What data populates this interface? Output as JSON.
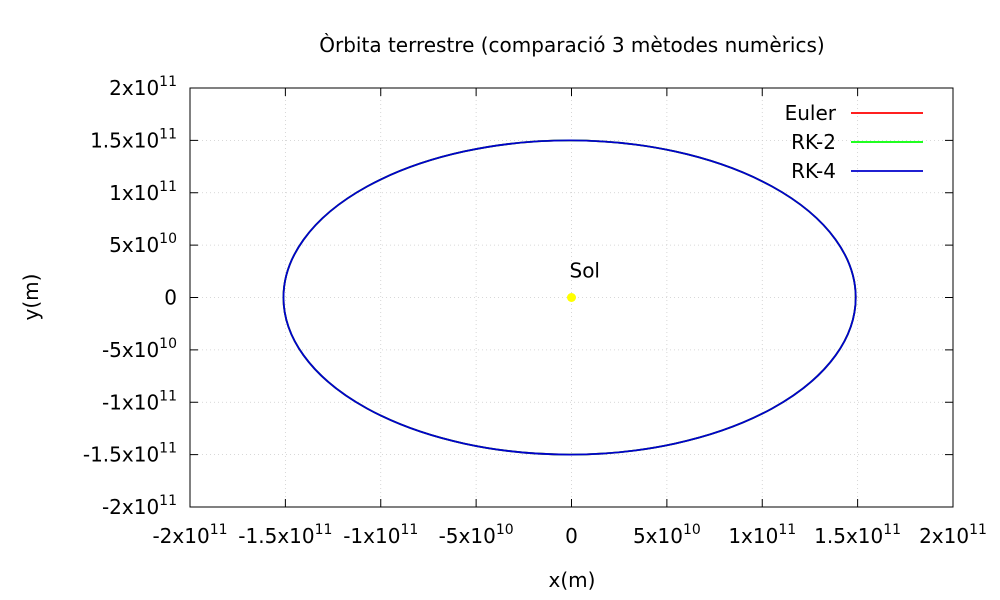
{
  "chart_data": {
    "type": "line",
    "title": "Òrbita terrestre (comparació 3 mètodes numèrics)",
    "xlabel": "x(m)",
    "ylabel": "y(m)",
    "xlim": [
      -200000000000.0,
      200000000000.0
    ],
    "ylim": [
      -200000000000.0,
      200000000000.0
    ],
    "grid": true,
    "legend_position": "top-right",
    "x_ticks": [
      {
        "value": -200000000000.0,
        "mantissa": "-2x10",
        "exp": "11"
      },
      {
        "value": -150000000000.0,
        "mantissa": "-1.5x10",
        "exp": "11"
      },
      {
        "value": -100000000000.0,
        "mantissa": "-1x10",
        "exp": "11"
      },
      {
        "value": -50000000000.0,
        "mantissa": "-5x10",
        "exp": "10"
      },
      {
        "value": 0,
        "mantissa": "0",
        "exp": ""
      },
      {
        "value": 50000000000.0,
        "mantissa": "5x10",
        "exp": "10"
      },
      {
        "value": 100000000000.0,
        "mantissa": "1x10",
        "exp": "11"
      },
      {
        "value": 150000000000.0,
        "mantissa": "1.5x10",
        "exp": "11"
      },
      {
        "value": 200000000000.0,
        "mantissa": "2x10",
        "exp": "11"
      }
    ],
    "y_ticks": [
      {
        "value": 200000000000.0,
        "mantissa": "2x10",
        "exp": "11"
      },
      {
        "value": 150000000000.0,
        "mantissa": "1.5x10",
        "exp": "11"
      },
      {
        "value": 100000000000.0,
        "mantissa": "1x10",
        "exp": "11"
      },
      {
        "value": 50000000000.0,
        "mantissa": "5x10",
        "exp": "10"
      },
      {
        "value": 0,
        "mantissa": "0",
        "exp": ""
      },
      {
        "value": -50000000000.0,
        "mantissa": "-5x10",
        "exp": "10"
      },
      {
        "value": -100000000000.0,
        "mantissa": "-1x10",
        "exp": "11"
      },
      {
        "value": -150000000000.0,
        "mantissa": "-1.5x10",
        "exp": "11"
      },
      {
        "value": -200000000000.0,
        "mantissa": "-2x10",
        "exp": "11"
      }
    ],
    "series": [
      {
        "name": "Euler",
        "color": "#ff0000",
        "center": [
          -1000000000.0,
          0
        ],
        "semi_axes": [
          150000000000.0,
          150000000000.0
        ]
      },
      {
        "name": "RK-2",
        "color": "#00ff00",
        "center": [
          -1000000000.0,
          0
        ],
        "semi_axes": [
          150000000000.0,
          150000000000.0
        ]
      },
      {
        "name": "RK-4",
        "color": "#0000cc",
        "center": [
          -1000000000.0,
          0
        ],
        "semi_axes": [
          150000000000.0,
          150000000000.0
        ]
      }
    ],
    "annotations": [
      {
        "label": "Sol",
        "x": 0,
        "y": 0,
        "color": "#ffff00"
      }
    ]
  }
}
